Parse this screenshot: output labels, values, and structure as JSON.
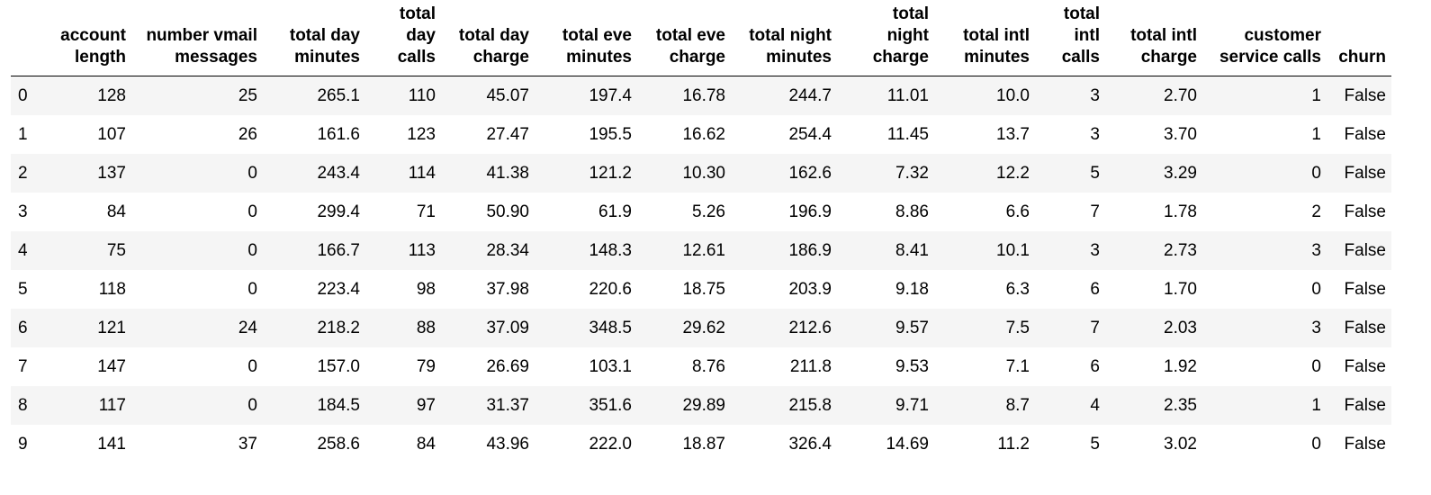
{
  "table": {
    "columns": [
      "",
      "account length",
      "number vmail messages",
      "total day minutes",
      "total day calls",
      "total day charge",
      "total eve minutes",
      "total eve charge",
      "total night minutes",
      "total night charge",
      "total intl minutes",
      "total intl calls",
      "total intl charge",
      "customer service calls",
      "churn"
    ],
    "rows": [
      [
        "0",
        "128",
        "25",
        "265.1",
        "110",
        "45.07",
        "197.4",
        "16.78",
        "244.7",
        "11.01",
        "10.0",
        "3",
        "2.70",
        "1",
        "False"
      ],
      [
        "1",
        "107",
        "26",
        "161.6",
        "123",
        "27.47",
        "195.5",
        "16.62",
        "254.4",
        "11.45",
        "13.7",
        "3",
        "3.70",
        "1",
        "False"
      ],
      [
        "2",
        "137",
        "0",
        "243.4",
        "114",
        "41.38",
        "121.2",
        "10.30",
        "162.6",
        "7.32",
        "12.2",
        "5",
        "3.29",
        "0",
        "False"
      ],
      [
        "3",
        "84",
        "0",
        "299.4",
        "71",
        "50.90",
        "61.9",
        "5.26",
        "196.9",
        "8.86",
        "6.6",
        "7",
        "1.78",
        "2",
        "False"
      ],
      [
        "4",
        "75",
        "0",
        "166.7",
        "113",
        "28.34",
        "148.3",
        "12.61",
        "186.9",
        "8.41",
        "10.1",
        "3",
        "2.73",
        "3",
        "False"
      ],
      [
        "5",
        "118",
        "0",
        "223.4",
        "98",
        "37.98",
        "220.6",
        "18.75",
        "203.9",
        "9.18",
        "6.3",
        "6",
        "1.70",
        "0",
        "False"
      ],
      [
        "6",
        "121",
        "24",
        "218.2",
        "88",
        "37.09",
        "348.5",
        "29.62",
        "212.6",
        "9.57",
        "7.5",
        "7",
        "2.03",
        "3",
        "False"
      ],
      [
        "7",
        "147",
        "0",
        "157.0",
        "79",
        "26.69",
        "103.1",
        "8.76",
        "211.8",
        "9.53",
        "7.1",
        "6",
        "1.92",
        "0",
        "False"
      ],
      [
        "8",
        "117",
        "0",
        "184.5",
        "97",
        "31.37",
        "351.6",
        "29.89",
        "215.8",
        "9.71",
        "8.7",
        "4",
        "2.35",
        "1",
        "False"
      ],
      [
        "9",
        "141",
        "37",
        "258.6",
        "84",
        "43.96",
        "222.0",
        "18.87",
        "326.4",
        "14.69",
        "11.2",
        "5",
        "3.02",
        "0",
        "False"
      ]
    ]
  }
}
